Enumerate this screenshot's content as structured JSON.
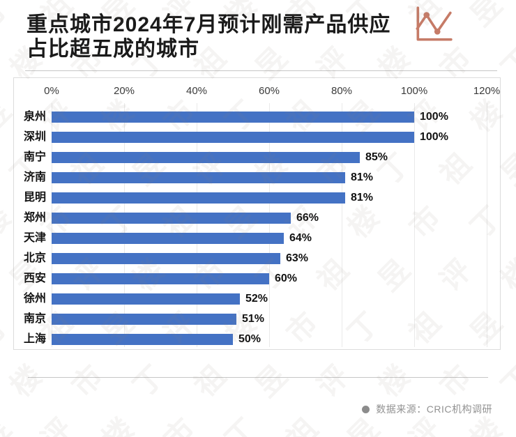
{
  "page": {
    "title_line1": "重点城市2024年7月预计刚需产品供应",
    "title_line2": "占比超五成的城市",
    "source_label": "数据来源：CRIC机构调研",
    "watermark_text": "丁祖昱评楼市",
    "icons": {
      "header_icon": "line-chart-icon",
      "source_bullet": "dot-icon"
    },
    "colors": {
      "bar": "#4472c4",
      "icon": "#c67b67",
      "title": "#1a1a1a",
      "source_text": "#929292",
      "gridline": "#e9e9e9"
    }
  },
  "chart_data": {
    "type": "bar",
    "orientation": "horizontal",
    "title": "重点城市2024年7月预计刚需产品供应占比超五成的城市",
    "categories": [
      "泉州",
      "深圳",
      "南宁",
      "济南",
      "昆明",
      "郑州",
      "天津",
      "北京",
      "西安",
      "徐州",
      "南京",
      "上海"
    ],
    "values": [
      100,
      100,
      85,
      81,
      81,
      66,
      64,
      63,
      60,
      52,
      51,
      50
    ],
    "value_labels": [
      "100%",
      "100%",
      "85%",
      "81%",
      "81%",
      "66%",
      "64%",
      "63%",
      "60%",
      "52%",
      "51%",
      "50%"
    ],
    "x_axis_ticks": [
      "0%",
      "20%",
      "40%",
      "60%",
      "80%",
      "100%",
      "120%"
    ],
    "xlim": [
      0,
      120
    ],
    "grid": true,
    "legend": "none",
    "source": "数据来源：CRIC机构调研"
  }
}
